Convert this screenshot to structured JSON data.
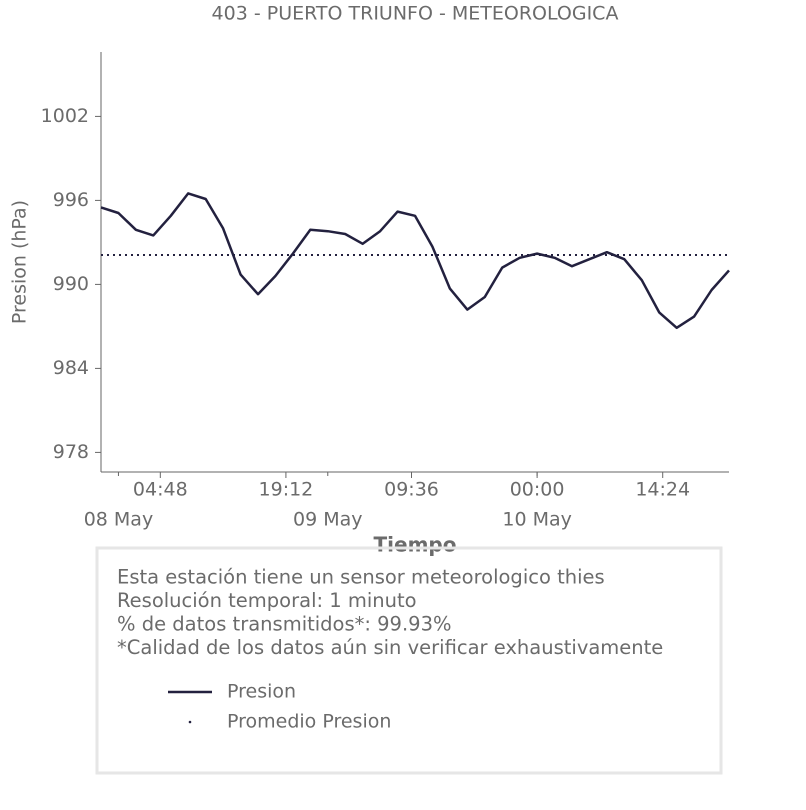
{
  "chart_data": {
    "type": "line",
    "title": "403 - PUERTO TRIUNFO - METEOROLOGICA",
    "x_label": "Tiempo",
    "y_label": "Presion (hPa)",
    "x": [
      "07 May 22:00",
      "08 May 00:00",
      "08 May 02:00",
      "08 May 04:00",
      "08 May 06:00",
      "08 May 08:00",
      "08 May 10:00",
      "08 May 12:00",
      "08 May 14:00",
      "08 May 16:00",
      "08 May 18:00",
      "08 May 20:00",
      "08 May 22:00",
      "09 May 00:00",
      "09 May 02:00",
      "09 May 04:00",
      "09 May 06:00",
      "09 May 08:00",
      "09 May 10:00",
      "09 May 12:00",
      "09 May 14:00",
      "09 May 16:00",
      "09 May 18:00",
      "09 May 20:00",
      "09 May 22:00",
      "10 May 00:00",
      "10 May 02:00",
      "10 May 04:00",
      "10 May 06:00",
      "10 May 08:00",
      "10 May 10:00",
      "10 May 12:00",
      "10 May 14:00",
      "10 May 16:00",
      "10 May 18:00",
      "10 May 20:00",
      "10 May 22:00"
    ],
    "series": [
      {
        "name": "Presion",
        "color": "#23213f",
        "values": [
          995.5,
          995.1,
          993.9,
          993.5,
          994.9,
          996.5,
          996.1,
          994.0,
          990.7,
          989.3,
          990.6,
          992.2,
          993.9,
          993.8,
          993.6,
          992.9,
          993.8,
          995.2,
          994.9,
          992.7,
          989.7,
          988.2,
          989.1,
          991.2,
          991.9,
          992.2,
          991.9,
          991.3,
          991.8,
          992.3,
          991.8,
          990.3,
          988.0,
          986.9,
          987.7,
          989.6,
          991.0
        ]
      }
    ],
    "mean_line": {
      "name": "Promedio Presion",
      "value": 992.1,
      "color": "#23213f"
    },
    "xlim": [
      "07 May 22:00",
      "10 May 22:00"
    ],
    "xticks": [
      {
        "value": "08 May 04:48",
        "label": "04:48"
      },
      {
        "value": "08 May 19:12",
        "label": "19:12"
      },
      {
        "value": "09 May 09:36",
        "label": "09:36"
      },
      {
        "value": "10 May 00:00",
        "label": "00:00"
      },
      {
        "value": "10 May 14:24",
        "label": "14:24"
      }
    ],
    "xdate_ticks": [
      {
        "value": "08 May 00:00",
        "label": "08 May"
      },
      {
        "value": "09 May 00:00",
        "label": "09 May"
      },
      {
        "value": "10 May 00:00",
        "label": "10 May"
      }
    ],
    "ylim": [
      976.6,
      1006.6
    ],
    "yticks": [
      978,
      984,
      990,
      996,
      1002
    ],
    "notes": [
      "Esta estación tiene un sensor meteorologico thies",
      "Resolución temporal: 1 minuto",
      "% de datos transmitidos*: 99.93%",
      "*Calidad de los datos aún sin verificar exhaustivamente"
    ]
  }
}
